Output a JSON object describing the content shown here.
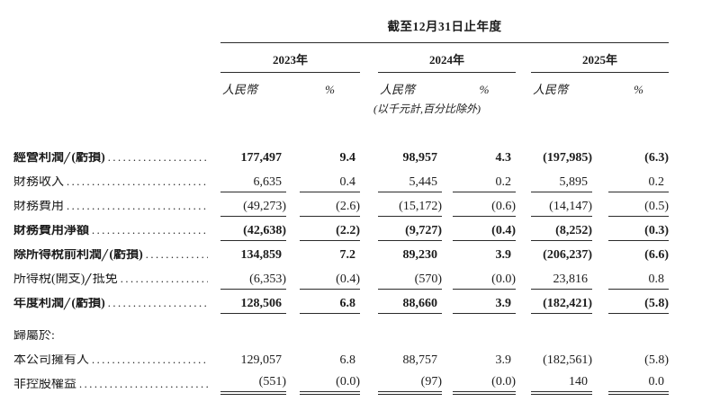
{
  "page": {
    "background": "#ffffff",
    "text_color": "#1c1c1c",
    "rule_color": "#2b2b2b"
  },
  "header": {
    "period_title": "截至12月31日止年度",
    "year_groups": [
      {
        "label": "2023年"
      },
      {
        "label": "2024年"
      },
      {
        "label": "2025年"
      }
    ],
    "currency_label": "人民幣",
    "percent_label": "%",
    "units_note": "(以千元計,百分比除外)"
  },
  "table": {
    "column_headers": [
      "2023年 人民幣",
      "2023年 %",
      "2024年 人民幣",
      "2024年 %",
      "2025年 人民幣",
      "2025年 %"
    ],
    "rows": [
      {
        "label": "經營利潤╱(虧損)",
        "bold": true,
        "leader": true,
        "spacer_before": false,
        "rule": "none",
        "values": [
          "177,497",
          "9.4",
          "98,957",
          "4.3",
          "(197,985)",
          "(6.3)"
        ]
      },
      {
        "label": "財務收入",
        "bold": false,
        "leader": true,
        "spacer_before": false,
        "rule": "single",
        "values": [
          "6,635",
          "0.4",
          "5,445",
          "0.2",
          "5,895",
          "0.2"
        ]
      },
      {
        "label": "財務費用",
        "bold": false,
        "leader": true,
        "spacer_before": false,
        "rule": "single",
        "values": [
          "(49,273)",
          "(2.6)",
          "(15,172)",
          "(0.6)",
          "(14,147)",
          "(0.5)"
        ]
      },
      {
        "label": "財務費用淨額",
        "bold": true,
        "leader": true,
        "spacer_before": false,
        "rule": "single",
        "values": [
          "(42,638)",
          "(2.2)",
          "(9,727)",
          "(0.4)",
          "(8,252)",
          "(0.3)"
        ]
      },
      {
        "label": "除所得稅前利潤╱(虧損)",
        "bold": true,
        "leader": true,
        "spacer_before": false,
        "rule": "none",
        "values": [
          "134,859",
          "7.2",
          "89,230",
          "3.9",
          "(206,237)",
          "(6.6)"
        ]
      },
      {
        "label": "所得稅(開支)╱抵免",
        "bold": false,
        "leader": true,
        "spacer_before": false,
        "rule": "single",
        "values": [
          "(6,353)",
          "(0.4)",
          "(570)",
          "(0.0)",
          "23,816",
          "0.8"
        ]
      },
      {
        "label": "年度利潤╱(虧損)",
        "bold": true,
        "leader": true,
        "spacer_before": false,
        "rule": "single",
        "values": [
          "128,506",
          "6.8",
          "88,660",
          "3.9",
          "(182,421)",
          "(5.8)"
        ]
      },
      {
        "label": "歸屬於:",
        "bold": false,
        "leader": false,
        "spacer_before": true,
        "rule": "none",
        "values": [
          "",
          "",
          "",
          "",
          "",
          ""
        ]
      },
      {
        "label": "本公司擁有人",
        "bold": false,
        "leader": true,
        "spacer_before": false,
        "rule": "none",
        "values": [
          "129,057",
          "6.8",
          "88,757",
          "3.9",
          "(182,561)",
          "(5.8)"
        ]
      },
      {
        "label": "非控股權益",
        "bold": false,
        "leader": true,
        "spacer_before": false,
        "rule": "double",
        "values": [
          "(551)",
          "(0.0)",
          "(97)",
          "(0.0)",
          "140",
          "0.0"
        ]
      }
    ]
  }
}
